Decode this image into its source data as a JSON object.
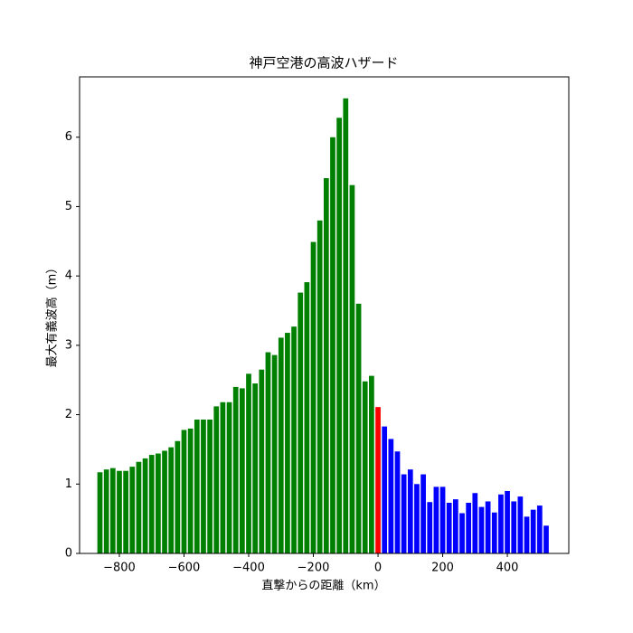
{
  "chart_data": {
    "type": "bar",
    "title": "神戸空港の高波ハザード",
    "xlabel": "直撃からの距離（km）",
    "ylabel": "最大有義波高（m）",
    "xlim": [
      -923,
      590
    ],
    "ylim": [
      0,
      6.87
    ],
    "xticks": [
      {
        "value": -800,
        "label": "−800"
      },
      {
        "value": -600,
        "label": "−600"
      },
      {
        "value": -400,
        "label": "−400"
      },
      {
        "value": -200,
        "label": "−200"
      },
      0,
      200,
      400
    ],
    "yticks": [
      0,
      1,
      2,
      3,
      4,
      5,
      6
    ],
    "bar_width": 16,
    "series": [
      {
        "color": "#008000",
        "x": [
          -860,
          -840,
          -820,
          -800,
          -780,
          -760,
          -740,
          -720,
          -700,
          -680,
          -660,
          -640,
          -620,
          -600,
          -580,
          -560,
          -540,
          -520,
          -500,
          -480,
          -460,
          -440,
          -420,
          -400,
          -380,
          -360,
          -340,
          -320,
          -300,
          -280,
          -260,
          -240,
          -220,
          -200,
          -180,
          -160,
          -140,
          -120,
          -100,
          -80,
          -60,
          -40,
          -20
        ],
        "values": [
          1.17,
          1.21,
          1.23,
          1.19,
          1.19,
          1.25,
          1.32,
          1.37,
          1.42,
          1.44,
          1.48,
          1.53,
          1.62,
          1.78,
          1.8,
          1.93,
          1.93,
          1.93,
          2.12,
          2.18,
          2.18,
          2.4,
          2.38,
          2.59,
          2.45,
          2.65,
          2.9,
          2.86,
          3.11,
          3.18,
          3.27,
          3.76,
          3.91,
          4.49,
          4.8,
          5.41,
          6.0,
          6.28,
          6.56,
          5.31,
          3.6,
          2.48,
          2.56
        ]
      },
      {
        "color": "#ff0000",
        "x": [
          0
        ],
        "values": [
          2.11
        ]
      },
      {
        "color": "#0000ff",
        "x": [
          20,
          40,
          60,
          80,
          100,
          120,
          140,
          160,
          180,
          200,
          220,
          240,
          260,
          280,
          300,
          320,
          340,
          360,
          380,
          400,
          420,
          440,
          460,
          480,
          500,
          520
        ],
        "values": [
          1.83,
          1.65,
          1.47,
          1.14,
          1.21,
          1.0,
          1.14,
          0.74,
          0.96,
          0.96,
          0.73,
          0.78,
          0.58,
          0.73,
          0.87,
          0.67,
          0.75,
          0.59,
          0.85,
          0.9,
          0.75,
          0.82,
          0.53,
          0.63,
          0.69,
          0.4
        ]
      }
    ]
  }
}
